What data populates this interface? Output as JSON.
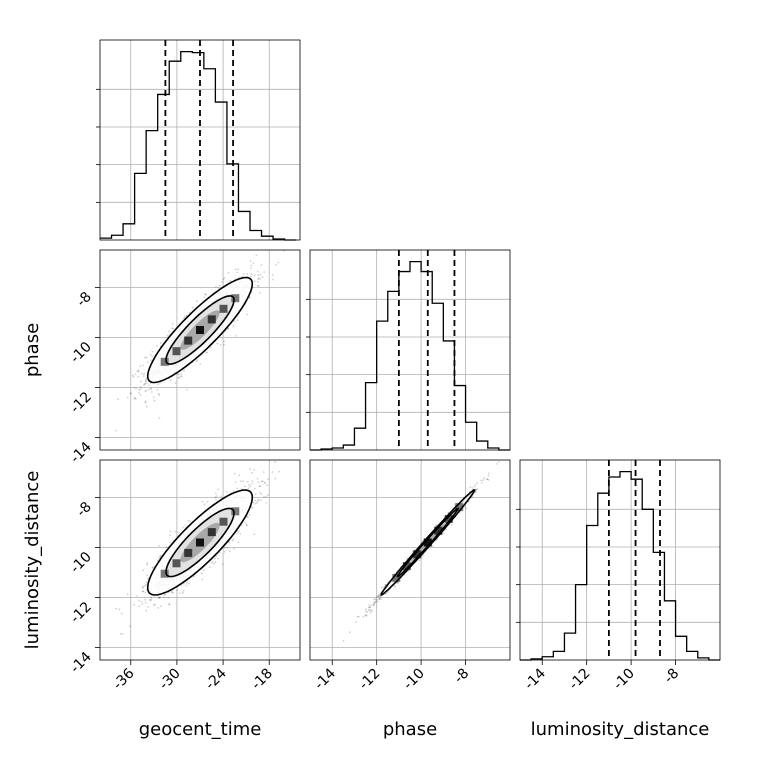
{
  "chart_data": {
    "type": "corner",
    "parameters": [
      "geocent_time",
      "phase",
      "luminosity_distance"
    ],
    "grid": true,
    "panels": [
      {
        "type": "histogram",
        "param": "geocent_time",
        "xlim": [
          -40,
          -14
        ],
        "bin_edges": [
          -40,
          -38.5,
          -37,
          -35.5,
          -34,
          -32.5,
          -31,
          -29.5,
          -28,
          -26.5,
          -25,
          -23.5,
          -22,
          -20.5,
          -19,
          -17.5,
          -16,
          -14.5
        ],
        "counts": [
          2,
          5,
          17,
          70,
          115,
          153,
          188,
          198,
          197,
          180,
          145,
          80,
          30,
          10,
          4,
          1,
          0
        ],
        "quantile_lines": [
          -31.5,
          -27,
          -22.7
        ]
      },
      {
        "type": "histogram",
        "param": "phase",
        "xlim": [
          -15,
          -6
        ],
        "bin_edges": [
          -15,
          -14.5,
          -14,
          -13.5,
          -13,
          -12.5,
          -12,
          -11.5,
          -11,
          -10.5,
          -10,
          -9.5,
          -9,
          -8.5,
          -8,
          -7.5,
          -7,
          -6.5,
          -6
        ],
        "counts": [
          0,
          1,
          2,
          5,
          22,
          68,
          130,
          160,
          180,
          190,
          180,
          148,
          110,
          65,
          28,
          9,
          2,
          0
        ],
        "quantile_lines": [
          -11,
          -9.7,
          -8.5
        ]
      },
      {
        "type": "histogram",
        "param": "luminosity_distance",
        "xlim": [
          -15,
          -6
        ],
        "bin_edges": [
          -15,
          -14.5,
          -14,
          -13.5,
          -13,
          -12.5,
          -12,
          -11.5,
          -11,
          -10.5,
          -10,
          -9.5,
          -9,
          -8.5,
          -8,
          -7.5,
          -7,
          -6.5,
          -6
        ],
        "counts": [
          0,
          1,
          3,
          8,
          25,
          70,
          125,
          155,
          170,
          175,
          168,
          140,
          100,
          55,
          22,
          8,
          2,
          0
        ],
        "quantile_lines": [
          -11,
          -9.8,
          -8.7
        ]
      },
      {
        "type": "2d_density",
        "x": "geocent_time",
        "y": "phase",
        "xlim": [
          -40,
          -14
        ],
        "ylim": [
          -14.5,
          -6.5
        ],
        "mean": [
          -27,
          -9.7
        ],
        "sd": [
          3.4,
          1.05
        ],
        "corr": 0.88
      },
      {
        "type": "2d_density",
        "x": "geocent_time",
        "y": "luminosity_distance",
        "xlim": [
          -40,
          -14
        ],
        "ylim": [
          -14.5,
          -6.5
        ],
        "mean": [
          -27,
          -9.8
        ],
        "sd": [
          3.4,
          1.05
        ],
        "corr": 0.86
      },
      {
        "type": "2d_density",
        "x": "phase",
        "y": "luminosity_distance",
        "xlim": [
          -15,
          -6
        ],
        "ylim": [
          -14.5,
          -6.5
        ],
        "mean": [
          -9.7,
          -9.8
        ],
        "sd": [
          1.05,
          1.05
        ],
        "corr": 0.995
      }
    ],
    "xticks": {
      "geocent_time": [
        "-36",
        "-30",
        "-24",
        "-18"
      ],
      "phase": [
        "-14",
        "-12",
        "-10",
        "-8"
      ],
      "luminosity_distance": [
        "-14",
        "-12",
        "-10",
        "-8"
      ]
    },
    "yticks": {
      "phase": [
        "-8",
        "-10",
        "-12",
        "-14"
      ],
      "luminosity_distance": [
        "-8",
        "-10",
        "-12",
        "-14"
      ]
    },
    "xlabels": [
      "geocent_time",
      "phase",
      "luminosity_distance"
    ],
    "ylabels": [
      "phase",
      "luminosity_distance"
    ]
  }
}
